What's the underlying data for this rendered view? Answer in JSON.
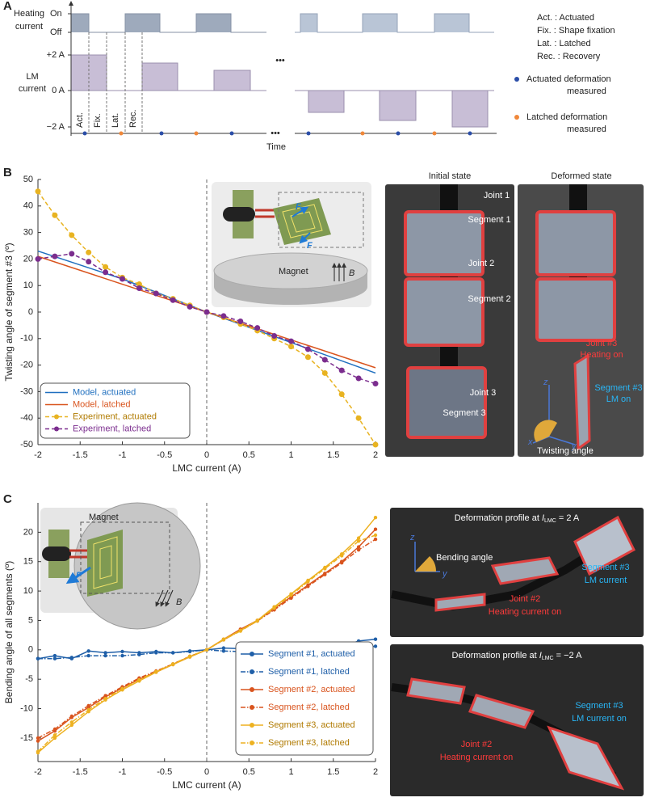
{
  "panel_labels": [
    "A",
    "B",
    "C"
  ],
  "timing_diagram": {
    "heating_label": [
      "Heating",
      "current"
    ],
    "on": "On",
    "off": "Off",
    "lm_label": [
      "LM",
      "current"
    ],
    "levels": [
      "+2 A",
      "0 A",
      "−2 A"
    ],
    "phases": [
      "Act.",
      "Fix.",
      "Lat.",
      "Rec."
    ],
    "ellipsis": "•••",
    "time_label": "Time",
    "abbreviations": [
      "Act. : Actuated",
      "Fix. : Shape fixation",
      "Lat. : Latched",
      "Rec. : Recovery"
    ],
    "markers": [
      {
        "label": [
          "Actuated deformation",
          "measured"
        ],
        "color": "#2b4ea8"
      },
      {
        "label": [
          "Latched deformation",
          "measured"
        ],
        "color": "#f0883a"
      }
    ]
  },
  "chart_data": [
    {
      "type": "line",
      "x_label": "LMC current (A)",
      "y_label": "Twisting angle of segment #3 (º)",
      "x": [
        -2,
        -1.8,
        -1.6,
        -1.4,
        -1.2,
        -1,
        -0.8,
        -0.6,
        -0.4,
        -0.2,
        0,
        0.2,
        0.4,
        0.6,
        0.8,
        1,
        1.2,
        1.4,
        1.6,
        1.8,
        2
      ],
      "xlim": [
        -2,
        2
      ],
      "ylim": [
        -50,
        50
      ],
      "xticks": [
        -2,
        -1.5,
        -1,
        -0.5,
        0,
        0.5,
        1,
        1.5,
        2
      ],
      "yticks": [
        -50,
        -40,
        -30,
        -20,
        -10,
        0,
        10,
        20,
        30,
        40,
        50
      ],
      "zero_line": true,
      "legend": "lower left",
      "inset": {
        "magnet": "Magnet",
        "force": "F",
        "field": "B"
      },
      "series": [
        {
          "name": "Model, actuated",
          "color": "#1f6fbf",
          "line_style": "solid",
          "x": [
            -2,
            -1,
            0,
            1,
            2
          ],
          "values": [
            23,
            12.5,
            0,
            -11.5,
            -23
          ]
        },
        {
          "name": "Model,  latched",
          "color": "#d9541e",
          "line_style": "solid",
          "x": [
            -2,
            -1,
            0,
            1,
            2
          ],
          "values": [
            21,
            10.5,
            0,
            -10.5,
            -21
          ]
        },
        {
          "name": "Experiment, actuated",
          "color": "#e8b321",
          "line_style": "dashed",
          "marker": "circle",
          "values": [
            45.5,
            36.5,
            29,
            22.5,
            17,
            13,
            10.5,
            7,
            5,
            2.5,
            0,
            -2,
            -4.5,
            -7,
            -10,
            -13,
            -17,
            -23,
            -31,
            -40,
            -50
          ]
        },
        {
          "name": "Experiment, latched",
          "color": "#7b2d8e",
          "line_style": "dashed",
          "marker": "circle",
          "values": [
            20,
            21,
            22,
            19,
            15,
            12.5,
            9,
            7,
            4.5,
            2,
            0,
            -1.5,
            -3.5,
            -6,
            -9,
            -11,
            -14,
            -18,
            -22,
            -25,
            -27
          ]
        }
      ]
    },
    {
      "type": "line",
      "x_label": "LMC current (A)",
      "y_label": "Bending angle of all segments (º)",
      "x": [
        -2,
        -1.8,
        -1.6,
        -1.4,
        -1.2,
        -1,
        -0.8,
        -0.6,
        -0.4,
        -0.2,
        0,
        0.2,
        0.4,
        0.6,
        0.8,
        1,
        1.2,
        1.4,
        1.6,
        1.8,
        2
      ],
      "xlim": [
        -2,
        2
      ],
      "ylim": [
        -19,
        25
      ],
      "xticks": [
        -2,
        -1.5,
        -1,
        -0.5,
        0,
        0.5,
        1,
        1.5,
        2
      ],
      "yticks": [
        -15,
        -10,
        -5,
        0,
        5,
        10,
        15,
        20
      ],
      "zero_line": true,
      "legend": "lower right",
      "inset": {
        "magnet": "Magnet",
        "force": "F",
        "field": "B"
      },
      "series": [
        {
          "name": "Segment #1, actuated",
          "color": "#1f5fa8",
          "line_style": "solid",
          "marker": "circle",
          "values": [
            -1.5,
            -1,
            -1.5,
            -0.2,
            -0.5,
            -0.3,
            -0.5,
            -0.3,
            -0.5,
            -0.2,
            0,
            0.3,
            0.2,
            0.3,
            0.3,
            0.1,
            0.3,
            0.4,
            0.5,
            1.5,
            1.8
          ]
        },
        {
          "name": "Segment #1, latched",
          "color": "#1f5fa8",
          "line_style": "dashdot",
          "marker": "circle",
          "values": [
            -1.5,
            -1.5,
            -1.3,
            -1,
            -1,
            -1,
            -0.8,
            -0.5,
            -0.5,
            -0.3,
            0,
            -0.2,
            -0.3,
            -0.2,
            -0.3,
            -0.2,
            0,
            0,
            0.2,
            0.5,
            0.6
          ]
        },
        {
          "name": "Segment #2, actuated",
          "color": "#d9541e",
          "line_style": "solid",
          "marker": "circle",
          "values": [
            -15.5,
            -13.8,
            -11.5,
            -9.8,
            -8,
            -6.5,
            -5,
            -3.8,
            -2.5,
            -1.2,
            0,
            1.8,
            3.5,
            5,
            7,
            9,
            11,
            13,
            15,
            17.5,
            20.5
          ]
        },
        {
          "name": "Segment #2, latched",
          "color": "#d9541e",
          "line_style": "dashdot",
          "marker": "circle",
          "values": [
            -15,
            -13.5,
            -11.3,
            -9.5,
            -7.8,
            -6.3,
            -4.8,
            -3.6,
            -2.4,
            -1.1,
            0,
            1.7,
            3.3,
            4.9,
            6.8,
            8.8,
            10.8,
            12.8,
            14.8,
            17,
            18.8
          ]
        },
        {
          "name": "Segment #3, actuated",
          "color": "#edb120",
          "line_style": "solid",
          "marker": "circle",
          "values": [
            -17.5,
            -15,
            -12.8,
            -10.5,
            -8.5,
            -6.8,
            -5.3,
            -3.8,
            -2.5,
            -1.2,
            0,
            1.8,
            3.3,
            5,
            7.3,
            9.5,
            11.8,
            14,
            16.3,
            19,
            22.5
          ]
        },
        {
          "name": "Segment #3, latched",
          "color": "#edb120",
          "line_style": "dashdot",
          "marker": "circle",
          "values": [
            -17.3,
            -14.5,
            -12.3,
            -10.2,
            -8.3,
            -6.6,
            -5.1,
            -3.7,
            -2.4,
            -1.1,
            0,
            1.7,
            3.2,
            4.9,
            7.1,
            9.3,
            11.6,
            13.8,
            16,
            18.5,
            19.5
          ]
        }
      ]
    }
  ],
  "photos": {
    "twisting": {
      "initial_title": "Initial state",
      "deformed_title": "Deformed state",
      "initial_labels": [
        "Joint 1",
        "Segment 1",
        "Joint 2",
        "Segment 2",
        "Joint 3",
        "Segment 3"
      ],
      "joint_label": [
        "Joint #3",
        "Heating on"
      ],
      "segment_label": [
        "Segment #3",
        "LM on"
      ],
      "angle_label": "Twisting angle",
      "axes": [
        "x",
        "y",
        "z"
      ]
    },
    "bending_positive": {
      "title": {
        "prefix": "Deformation profile at ",
        "variable": "I",
        "subscript": "LMC",
        "suffix": " = 2 A"
      },
      "angle_label": "Bending angle",
      "segment_label": [
        "Segment #3",
        "LM current"
      ],
      "joint_label": [
        "Joint #2",
        "Heating current on"
      ],
      "axes": [
        "z",
        "y"
      ]
    },
    "bending_negative": {
      "title": {
        "prefix": "Deformation profile at ",
        "variable": "I",
        "subscript": "LMC",
        "suffix": " = −2 A"
      },
      "segment_label": [
        "Segment #3",
        "LM current on"
      ],
      "joint_label": [
        "Joint #2",
        "Heating current on"
      ]
    }
  }
}
